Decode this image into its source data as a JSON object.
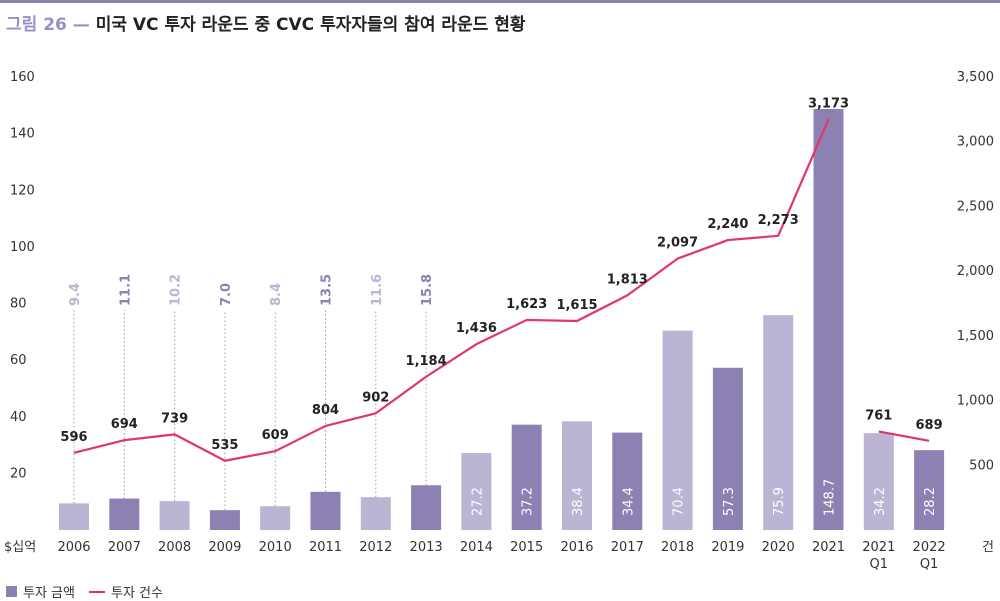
{
  "title": {
    "prefix": "그림 26 — ",
    "text": "미국 VC 투자 라운드 중 CVC 투자자들의 참여 라운드 현황"
  },
  "colors": {
    "title_prefix": "#9a8fc4",
    "title_text": "#222222",
    "bar_light": "#bcb4d3",
    "bar_dark": "#8d80b2",
    "line": "#e0356e",
    "axis_text": "#333333",
    "topline": "#8d80b2"
  },
  "legend": {
    "bar_label": "투자 금액",
    "line_label": "투자 건수"
  },
  "chart_data": {
    "type": "bar",
    "categories": [
      "2006",
      "2007",
      "2008",
      "2009",
      "2010",
      "2011",
      "2012",
      "2013",
      "2014",
      "2015",
      "2016",
      "2017",
      "2018",
      "2019",
      "2020",
      "2021",
      "2021 Q1",
      "2022 Q1"
    ],
    "series": [
      {
        "name": "투자 금액",
        "type": "bar",
        "axis": "left",
        "values": [
          9.4,
          11.1,
          10.2,
          7.0,
          8.4,
          13.5,
          11.6,
          15.8,
          27.2,
          37.2,
          38.4,
          34.4,
          70.4,
          57.3,
          75.9,
          148.7,
          34.2,
          28.2
        ],
        "labels": [
          "9.4",
          "11.1",
          "10.2",
          "7.0",
          "8.4",
          "13.5",
          "11.6",
          "15.8",
          "27.2",
          "37.2",
          "38.4",
          "34.4",
          "70.4",
          "57.3",
          "75.9",
          "148.7",
          "34.2",
          "28.2"
        ]
      },
      {
        "name": "투자 건수",
        "type": "line",
        "axis": "right",
        "values": [
          596,
          694,
          739,
          535,
          609,
          804,
          902,
          1184,
          1436,
          1623,
          1615,
          1813,
          2097,
          2240,
          2273,
          3173,
          761,
          689
        ],
        "labels": [
          "596",
          "694",
          "739",
          "535",
          "609",
          "804",
          "902",
          "1,184",
          "1,436",
          "1,623",
          "1,615",
          "1,813",
          "2,097",
          "2,240",
          "2,273",
          "3,173",
          "761",
          "689"
        ],
        "segments": [
          [
            0,
            15
          ],
          [
            16,
            17
          ]
        ]
      }
    ],
    "bar_tone": [
      "light",
      "dark",
      "light",
      "dark",
      "light",
      "dark",
      "light",
      "dark",
      "light",
      "dark",
      "light",
      "dark",
      "light",
      "dark",
      "light",
      "dark",
      "light",
      "dark"
    ],
    "y_left": {
      "label": "$십억",
      "ylim": [
        0,
        160
      ],
      "ticks": [
        "20",
        "40",
        "60",
        "80",
        "100",
        "120",
        "140",
        "160"
      ],
      "tick_values": [
        20,
        40,
        60,
        80,
        100,
        120,
        140,
        160
      ]
    },
    "y_right": {
      "label": "건",
      "ylim": [
        0,
        3500
      ],
      "ticks": [
        "500",
        "1,000",
        "1,500",
        "2,000",
        "2,500",
        "3,000",
        "3,500"
      ],
      "tick_values": [
        500,
        1000,
        1500,
        2000,
        2500,
        3000,
        3500
      ]
    },
    "grid": false,
    "legend_position": "bottom-left"
  }
}
